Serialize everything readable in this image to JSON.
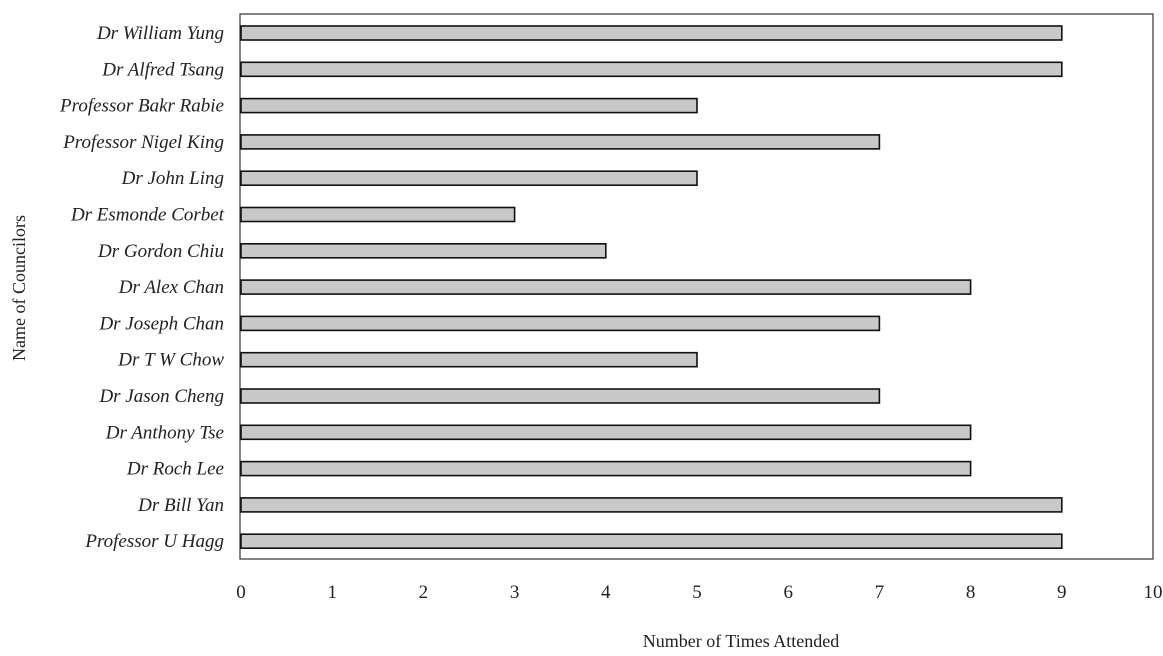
{
  "chart_data": {
    "type": "bar",
    "orientation": "horizontal",
    "title": "",
    "xlabel": "Number of Times Attended",
    "ylabel": "Name of Councilors",
    "xlim": [
      0,
      10
    ],
    "xticks": [
      "0",
      "1",
      "2",
      "3",
      "4",
      "5",
      "6",
      "7",
      "8",
      "9",
      "10"
    ],
    "grid": false,
    "bar_color": "#c8c8c8",
    "bar_edge_color": "#111111",
    "categories": [
      "Dr William Yung",
      "Dr Alfred Tsang",
      "Professor Bakr Rabie",
      "Professor Nigel King",
      "Dr John Ling",
      "Dr Esmonde Corbet",
      "Dr Gordon Chiu",
      "Dr Alex Chan",
      "Dr Joseph Chan",
      "Dr T W Chow",
      "Dr Jason Cheng",
      "Dr Anthony Tse",
      "Dr Roch Lee",
      "Dr Bill Yan",
      "Professor U Hagg"
    ],
    "values": [
      9,
      9,
      5,
      7,
      5,
      3,
      4,
      8,
      7,
      5,
      7,
      8,
      8,
      9,
      9
    ]
  }
}
